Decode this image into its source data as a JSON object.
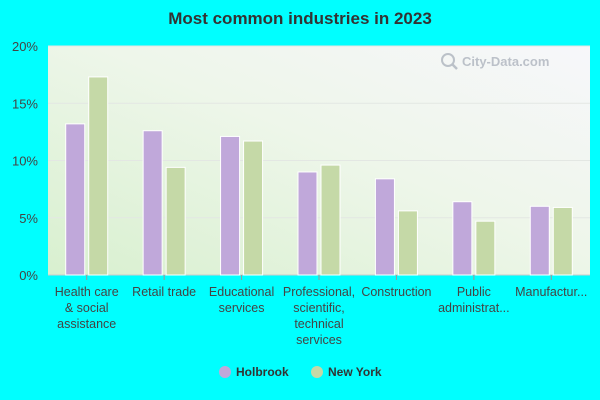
{
  "chart_data": {
    "type": "bar",
    "title": "Most common industries in 2023",
    "categories": [
      [
        "Health care",
        "& social",
        "assistance"
      ],
      [
        "Retail trade"
      ],
      [
        "Educational",
        "services"
      ],
      [
        "Professional,",
        "scientific,",
        "technical",
        "services"
      ],
      [
        "Construction"
      ],
      [
        "Public",
        "administrat..."
      ],
      [
        "Manufactur..."
      ]
    ],
    "series": [
      {
        "name": "Holbrook",
        "color": "#c0a8da",
        "values": [
          13.2,
          12.6,
          12.1,
          9.0,
          8.4,
          6.4,
          6.0
        ]
      },
      {
        "name": "New York",
        "color": "#c5d9a7",
        "values": [
          17.3,
          9.4,
          11.7,
          9.6,
          5.6,
          4.7,
          5.9
        ]
      }
    ],
    "y_ticks": [
      0,
      5,
      10,
      15,
      20
    ],
    "y_tick_labels": [
      "0%",
      "5%",
      "10%",
      "15%",
      "20%"
    ],
    "ylim": [
      0,
      20
    ],
    "xlabel": "",
    "ylabel": "",
    "legend_position": "bottom-center",
    "watermark": "City-Data.com"
  }
}
